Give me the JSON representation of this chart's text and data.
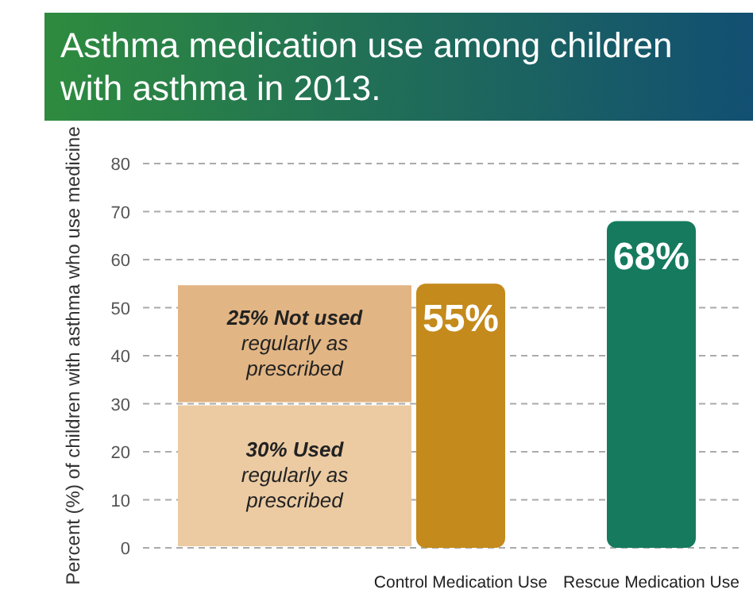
{
  "chart_data": {
    "type": "bar",
    "title": "Asthma medication use among children with asthma in 2013.",
    "ylabel": "Percent (%) of children with asthma who use medicine",
    "categories": [
      null,
      "Control Medication Use",
      "Rescue Medication Use"
    ],
    "stacked": true,
    "series": [
      {
        "name": "30% Used regularly as prescribed",
        "color": "#eccba3",
        "values": [
          30,
          null,
          null
        ]
      },
      {
        "name": "25% Not used regularly as prescribed",
        "color": "#e2b584",
        "values": [
          25,
          null,
          null
        ]
      },
      {
        "color": "#c48a1c",
        "values": [
          null,
          55,
          null
        ],
        "value_labels": [
          null,
          "55%",
          null
        ]
      },
      {
        "color": "#157a5e",
        "values": [
          null,
          null,
          68
        ],
        "value_labels": [
          null,
          null,
          "68%"
        ]
      }
    ],
    "ylim": [
      0,
      80
    ],
    "yticks": [
      0,
      10,
      20,
      30,
      40,
      50,
      60,
      70,
      80
    ],
    "grid": "y"
  }
}
